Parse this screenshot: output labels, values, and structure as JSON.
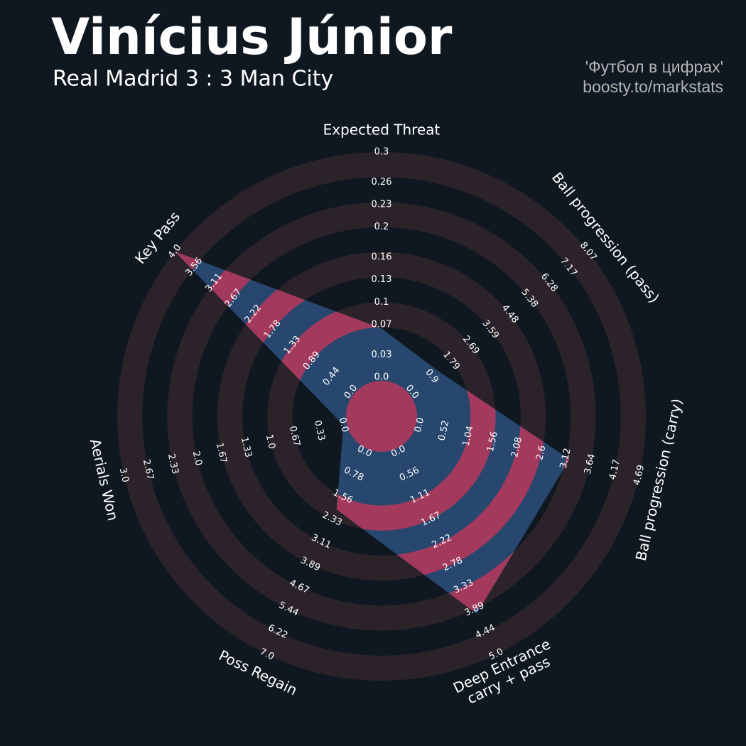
{
  "chart_data": {
    "type": "radar",
    "title": "Vinícius Júnior",
    "subtitle": "Real Madrid 3 : 3 Man City",
    "credits": [
      "'Футбол в цифрах'",
      "boosty.to/markstats"
    ],
    "params": [
      "Expected Threat",
      "Ball progression (pass)",
      "Ball progression (carry)",
      "Deep Entrance\ncarry + pass",
      "Poss Regain",
      "Aerials Won",
      "Key Pass"
    ],
    "values": [
      0.065,
      1.2,
      3.2,
      4.0,
      2.0,
      0,
      4.0
    ],
    "color": "#27476f",
    "ring_color": "#a33a5e",
    "ticks": [
      [
        {
          "value": 0,
          "label": "0.0"
        },
        0.03,
        0.07,
        0.1,
        0.13,
        0.16,
        0.2,
        0.23,
        0.26,
        0.3
      ],
      [
        {
          "value": 0,
          "label": "0.0"
        },
        0.9,
        1.79,
        2.69,
        3.59,
        4.48,
        5.38,
        6.28,
        7.17,
        8.07
      ],
      [
        {
          "value": 0,
          "label": "0.0"
        },
        0.52,
        1.04,
        1.56,
        2.08,
        2.6,
        3.12,
        3.64,
        4.17,
        4.69
      ],
      [
        {
          "value": 0,
          "label": "0.0"
        },
        0.56,
        1.11,
        1.67,
        2.22,
        2.78,
        3.33,
        3.89,
        4.44,
        {
          "value": 5,
          "label": "5.0"
        }
      ],
      [
        {
          "value": 0,
          "label": "0.0"
        },
        0.78,
        1.56,
        2.33,
        3.11,
        3.89,
        4.67,
        5.44,
        6.22,
        {
          "value": 7,
          "label": "7.0"
        }
      ],
      [
        {
          "value": 0,
          "label": "0.0"
        },
        0.33,
        0.67,
        {
          "value": 1,
          "label": "1.0"
        },
        1.33,
        1.67,
        {
          "value": 2,
          "label": "2.0"
        },
        2.33,
        2.67,
        {
          "value": 3,
          "label": "3.0"
        }
      ],
      [
        {
          "value": 0,
          "label": "0.0"
        },
        0.44,
        0.89,
        1.33,
        1.78,
        2.22,
        2.67,
        3.11,
        3.56,
        {
          "value": 4,
          "label": "4.0"
        }
      ]
    ]
  }
}
